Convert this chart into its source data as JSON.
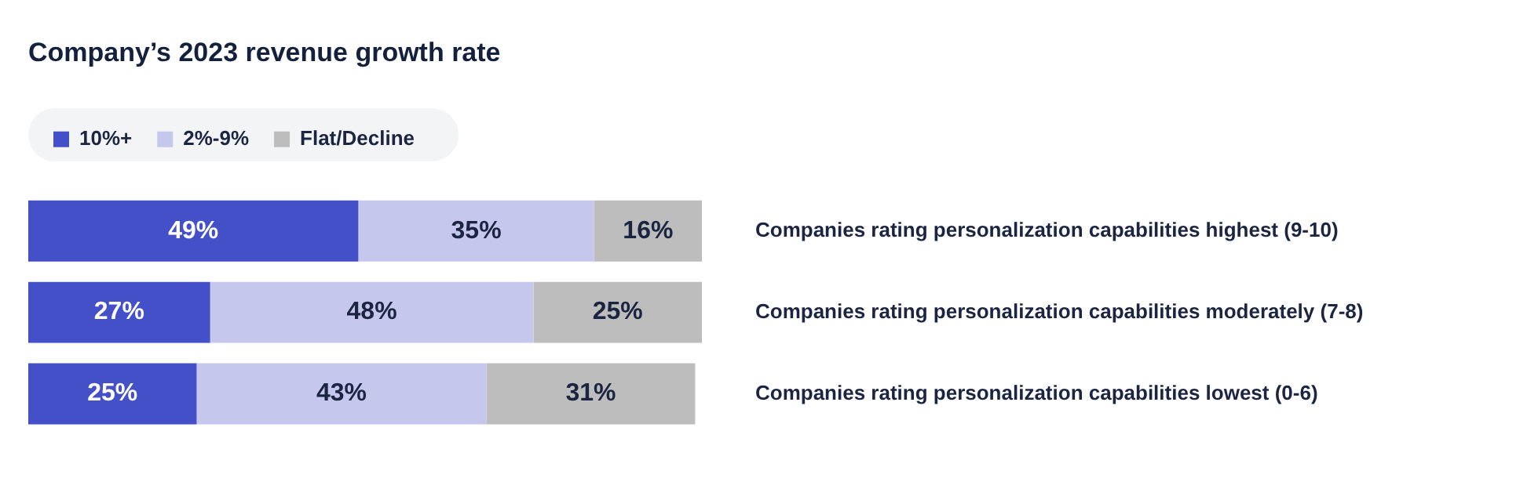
{
  "chart_data": {
    "type": "bar",
    "orientation": "horizontal",
    "stacked": true,
    "title": "Company’s 2023 revenue growth rate",
    "categories": [
      "Companies rating personalization capabilities highest (9-10)",
      "Companies rating personalization capabilities moderately (7-8)",
      "Companies rating personalization capabilities lowest (0-6)"
    ],
    "series": [
      {
        "name": "10%+",
        "color": "#4350c8",
        "values": [
          49,
          27,
          25
        ],
        "value_labels": [
          "49%",
          "27%",
          "25%"
        ]
      },
      {
        "name": "2%-9%",
        "color": "#c5c8ec",
        "values": [
          35,
          48,
          43
        ],
        "value_labels": [
          "35%",
          "48%",
          "43%"
        ]
      },
      {
        "name": "Flat/Decline",
        "color": "#bdbdbd",
        "values": [
          16,
          25,
          31
        ],
        "value_labels": [
          "16%",
          "25%",
          "31%"
        ]
      }
    ],
    "legend": "top left"
  }
}
